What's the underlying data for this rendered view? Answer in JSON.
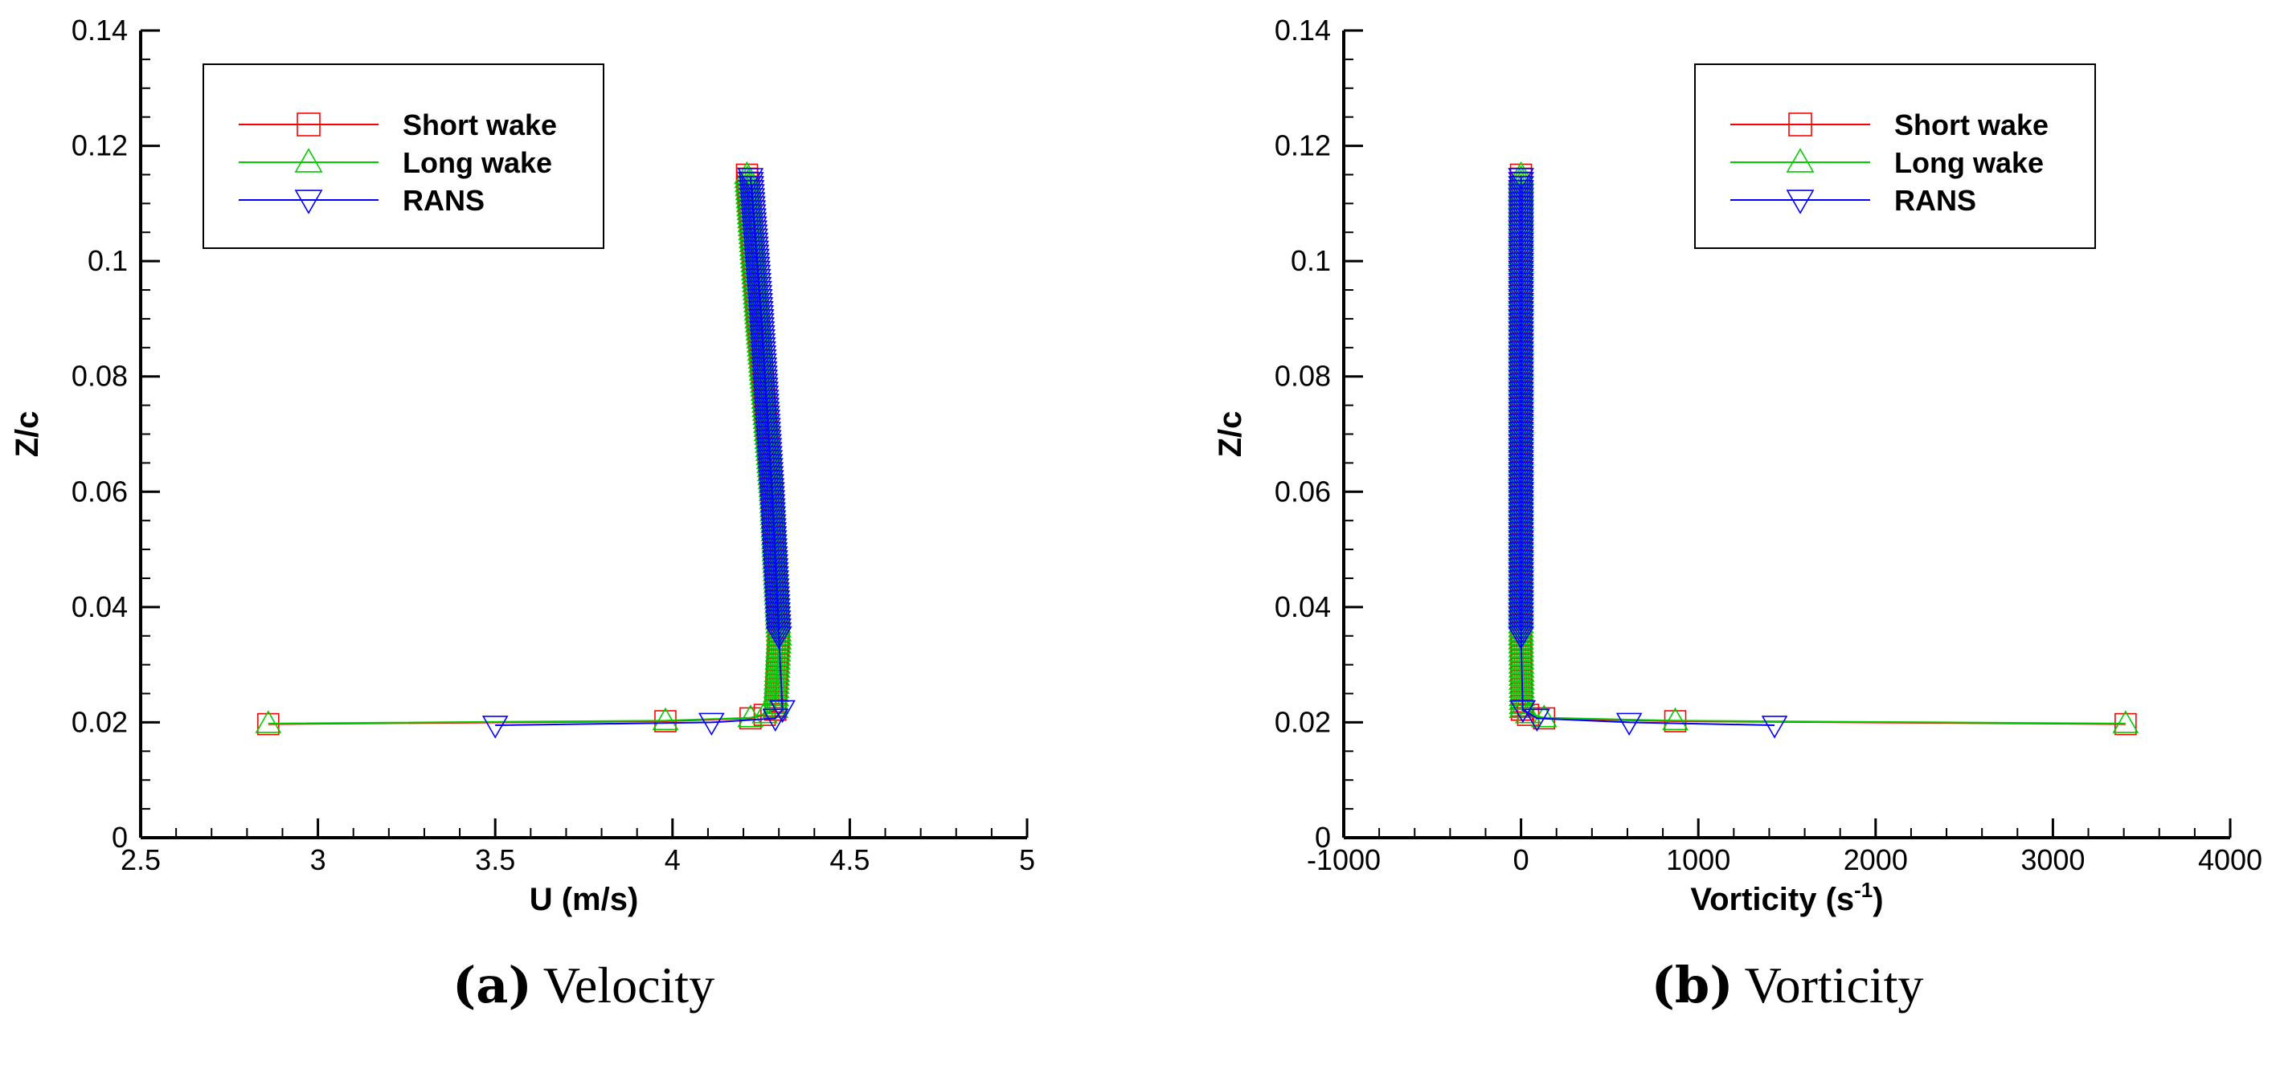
{
  "chart_data": [
    {
      "type": "line",
      "xlabel": "U (m/s)",
      "ylabel": "Z/c",
      "xlim": [
        2.5,
        5
      ],
      "ylim": [
        0,
        0.14
      ],
      "xticks": [
        "2.5",
        "3",
        "3.5",
        "4",
        "4.5",
        "5"
      ],
      "yticks": [
        "0",
        "0.02",
        "0.04",
        "0.06",
        "0.08",
        "0.1",
        "0.12",
        "0.14"
      ],
      "grid": false,
      "legend_position": "top-left",
      "caption_letter": "(a)",
      "caption_text": "Velocity",
      "series": [
        {
          "name": "Short wake",
          "color": "#ff0000",
          "marker": "square",
          "x": [
            2.86,
            3.98,
            4.22,
            4.26,
            4.29,
            4.3,
            4.28,
            4.24,
            4.21
          ],
          "y": [
            0.0197,
            0.0202,
            0.0207,
            0.0213,
            0.0222,
            0.035,
            0.06,
            0.09,
            0.115
          ]
        },
        {
          "name": "Long wake",
          "color": "#00cc00",
          "marker": "triangle-up",
          "x": [
            2.86,
            3.98,
            4.22,
            4.26,
            4.29,
            4.3,
            4.28,
            4.24,
            4.21
          ],
          "y": [
            0.0198,
            0.0203,
            0.0208,
            0.0215,
            0.0224,
            0.035,
            0.06,
            0.09,
            0.115
          ]
        },
        {
          "name": "RANS",
          "color": "#0000ff",
          "marker": "triangle-down",
          "x": [
            3.5,
            4.11,
            4.29,
            4.31,
            4.3,
            4.28,
            4.25,
            4.22
          ],
          "y": [
            0.0195,
            0.02,
            0.0207,
            0.0222,
            0.035,
            0.06,
            0.09,
            0.1145
          ]
        }
      ]
    },
    {
      "type": "line",
      "xlabel": "Vorticity (s",
      "xlabel_superscript": "-1",
      "xlabel_close": ")",
      "ylabel": "Z/c",
      "xlim": [
        -1000,
        4000
      ],
      "ylim": [
        0,
        0.14
      ],
      "xticks": [
        "-1000",
        "0",
        "1000",
        "2000",
        "3000",
        "4000"
      ],
      "yticks": [
        "0",
        "0.02",
        "0.04",
        "0.06",
        "0.08",
        "0.1",
        "0.12",
        "0.14"
      ],
      "grid": false,
      "legend_position": "top-right",
      "caption_letter": "(b)",
      "caption_text": "Vorticity",
      "series": [
        {
          "name": "Short wake",
          "color": "#ff0000",
          "marker": "square",
          "x": [
            3410,
            870,
            130,
            40,
            5,
            0,
            0,
            0,
            0
          ],
          "y": [
            0.0197,
            0.0202,
            0.0207,
            0.0213,
            0.0222,
            0.035,
            0.06,
            0.09,
            0.115
          ]
        },
        {
          "name": "Long wake",
          "color": "#00cc00",
          "marker": "triangle-up",
          "x": [
            3410,
            870,
            130,
            40,
            5,
            0,
            0,
            0,
            0
          ],
          "y": [
            0.0198,
            0.0203,
            0.0208,
            0.0215,
            0.0224,
            0.035,
            0.06,
            0.09,
            0.115
          ]
        },
        {
          "name": "RANS",
          "color": "#0000ff",
          "marker": "triangle-down",
          "x": [
            1430,
            610,
            90,
            10,
            0,
            0,
            0,
            0
          ],
          "y": [
            0.0195,
            0.02,
            0.0207,
            0.0222,
            0.035,
            0.06,
            0.09,
            0.1145
          ]
        }
      ]
    }
  ]
}
